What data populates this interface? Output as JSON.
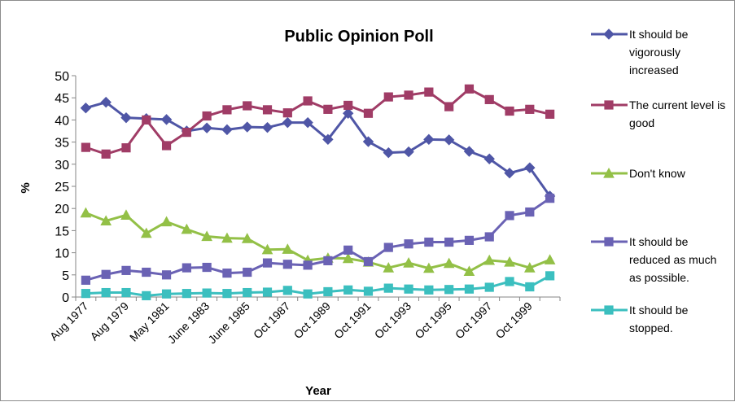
{
  "chart_data": {
    "type": "line",
    "title": "Public Opinion Poll",
    "xlabel": "Year",
    "ylabel": "%",
    "ylim": [
      0,
      50
    ],
    "yticks": [
      0,
      5,
      10,
      15,
      20,
      25,
      30,
      35,
      40,
      45,
      50
    ],
    "grid": false,
    "legend": "right",
    "tick_labels": [
      "Aug 1977",
      "Aug 1979",
      "May 1981",
      "June 1983",
      "June 1985",
      "Oct 1987",
      "Oct 1989",
      "Oct 1991",
      "Oct 1993",
      "Oct 1995",
      "Oct 1997",
      "Oct 1999"
    ],
    "series": [
      {
        "name": "It should be vigorously increased",
        "legend_lines": [
          "It should be",
          "vigorously",
          "increased"
        ],
        "color": "#4f56a6",
        "marker": "diamond",
        "values": [
          42.7,
          44.0,
          40.5,
          40.3,
          40.1,
          37.5,
          38.2,
          37.8,
          38.4,
          38.3,
          39.4,
          39.4,
          35.6,
          41.5,
          35.1,
          32.6,
          32.8,
          35.6,
          35.5,
          32.9,
          31.2,
          28.0,
          29.2,
          22.8
        ]
      },
      {
        "name": "The current level is good",
        "legend_lines": [
          "The current level is",
          "good"
        ],
        "color": "#a03c66",
        "marker": "square",
        "values": [
          33.8,
          32.3,
          33.7,
          40.0,
          34.2,
          37.2,
          40.9,
          42.3,
          43.2,
          42.3,
          41.6,
          44.3,
          42.4,
          43.3,
          41.5,
          45.2,
          45.6,
          46.3,
          43.0,
          47.0,
          44.6,
          42.0,
          42.4,
          41.3
        ]
      },
      {
        "name": "Don't know",
        "legend_lines": [
          "Don't know"
        ],
        "color": "#93c047",
        "marker": "triangle",
        "values": [
          19.0,
          17.2,
          18.5,
          14.4,
          17.0,
          15.3,
          13.7,
          13.3,
          13.2,
          10.7,
          10.8,
          8.3,
          8.8,
          8.7,
          7.9,
          6.6,
          7.7,
          6.5,
          7.6,
          5.8,
          8.3,
          7.9,
          6.6,
          8.4
        ]
      },
      {
        "name": "It should be reduced as much as possible.",
        "legend_lines": [
          "It should be",
          "reduced as much",
          "as possible."
        ],
        "color": "#6a62b4",
        "marker": "square",
        "values": [
          3.8,
          5.1,
          6.0,
          5.6,
          5.0,
          6.6,
          6.7,
          5.4,
          5.6,
          7.7,
          7.4,
          7.2,
          8.2,
          10.6,
          8.0,
          11.2,
          12.0,
          12.4,
          12.4,
          12.8,
          13.6,
          18.4,
          19.2,
          22.3
        ]
      },
      {
        "name": "It should be stopped.",
        "legend_lines": [
          "It should be",
          "stopped."
        ],
        "color": "#3bbfbf",
        "marker": "square",
        "values": [
          0.8,
          1.0,
          1.0,
          0.3,
          0.7,
          0.8,
          0.9,
          0.8,
          1.0,
          1.1,
          1.5,
          0.7,
          1.2,
          1.6,
          1.3,
          2.0,
          1.8,
          1.6,
          1.7,
          1.8,
          2.2,
          3.5,
          2.3,
          4.8
        ]
      }
    ]
  }
}
